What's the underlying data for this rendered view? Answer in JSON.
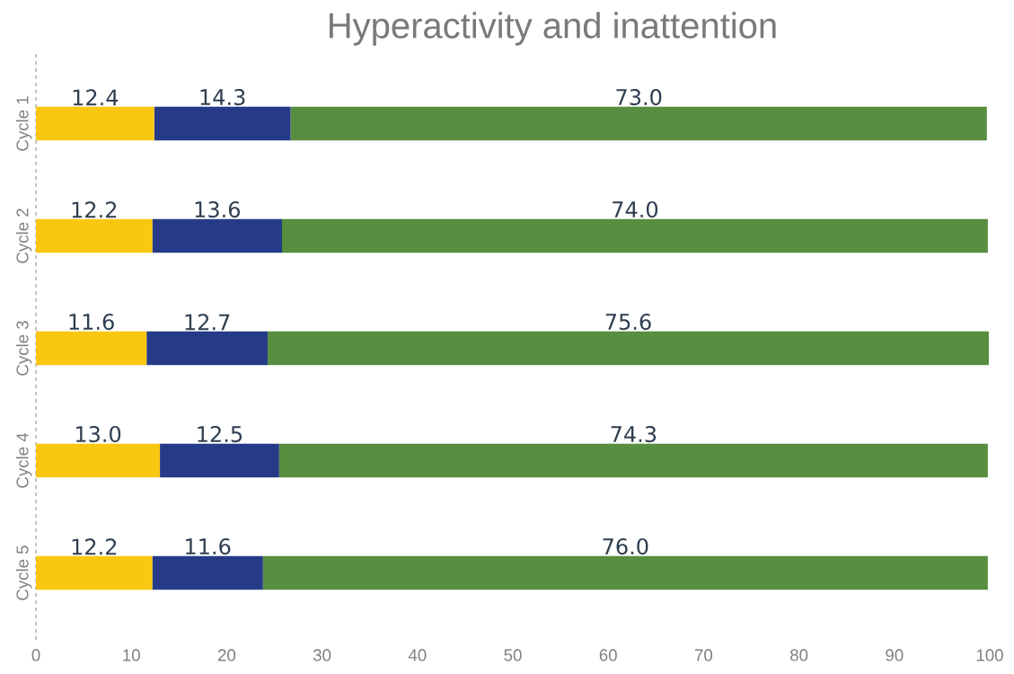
{
  "chart_data": {
    "type": "bar",
    "orientation": "horizontal",
    "stacked": true,
    "title": "Hyperactivity and inattention",
    "categories": [
      "Cycle 1",
      "Cycle 2",
      "Cycle 3",
      "Cycle 4",
      "Cycle 5"
    ],
    "series": [
      {
        "color": "#fac710",
        "values": [
          12.4,
          12.2,
          11.6,
          13.0,
          12.2
        ],
        "value_labels": [
          "12.4",
          "12.2",
          "11.6",
          "13.0",
          "12.2"
        ]
      },
      {
        "color": "#263b87",
        "values": [
          14.3,
          13.6,
          12.7,
          12.5,
          11.6
        ],
        "value_labels": [
          "14.3",
          "13.6",
          "12.7",
          "12.5",
          "11.6"
        ]
      },
      {
        "color": "#578e3f",
        "values": [
          73.0,
          74.0,
          75.6,
          74.3,
          76.0
        ],
        "value_labels": [
          "73.0",
          "74.0",
          "75.6",
          "74.3",
          "76.0"
        ]
      }
    ],
    "xlim": [
      0,
      100
    ],
    "xticks": [
      0,
      10,
      20,
      30,
      40,
      50,
      60,
      70,
      80,
      90,
      100
    ],
    "grid": false
  }
}
